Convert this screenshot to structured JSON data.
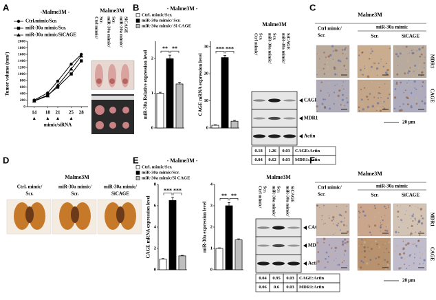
{
  "panels": [
    "A",
    "B",
    "C",
    "D",
    "E",
    "F"
  ],
  "chart_data": [
    {
      "type": "line",
      "title": "-Malme3M -",
      "ylabel": "Tumor volume (mm³)",
      "xlabel": "mimic/siRNA",
      "x": [
        14,
        18,
        21,
        25,
        28
      ],
      "xlim": [
        12,
        30
      ],
      "xticks": [
        14,
        18,
        21,
        25,
        28
      ],
      "ylim": [
        0,
        2000
      ],
      "yticks": [
        0,
        200,
        400,
        600,
        800,
        1000,
        1200,
        1400,
        1600,
        1800,
        2000
      ],
      "series": [
        {
          "name": "Ctrl.mimic/Scr.",
          "color": "#000000",
          "marker": "circle",
          "values": [
            200,
            420,
            780,
            1300,
            1600
          ]
        },
        {
          "name": "miR-30a mimic/Scr.",
          "color": "#000000",
          "marker": "square",
          "values": [
            180,
            350,
            600,
            1000,
            1400
          ]
        },
        {
          "name": "miR-30a mimic/SiCAGE",
          "color": "#000000",
          "marker": "triangle",
          "values": [
            170,
            330,
            650,
            1150,
            1550
          ]
        }
      ]
    },
    {
      "type": "bar",
      "ylabel": "miR-30a Relative expression level",
      "values": [
        1,
        2,
        1.27
      ],
      "errors": [
        0.03,
        0.1,
        0.05
      ],
      "colors": [
        "#ffffff",
        "#000000",
        "#bfbfbf"
      ],
      "ylim": [
        0,
        2.5
      ],
      "yticks": [
        0,
        1,
        2
      ],
      "annotations": [
        "**",
        "**"
      ]
    },
    {
      "type": "bar",
      "ylabel": "CAGE mRNA  expression level",
      "values": [
        1,
        26,
        2.5
      ],
      "errors": [
        0.2,
        0.8,
        0.3
      ],
      "colors": [
        "#ffffff",
        "#000000",
        "#bfbfbf"
      ],
      "ylim": [
        0,
        32
      ],
      "yticks": [
        0,
        10,
        20,
        30
      ],
      "annotations": [
        "***",
        "***"
      ]
    },
    {
      "type": "bar",
      "ylabel": "CAGE mRNA  expression level",
      "values": [
        1,
        6.5,
        1.3
      ],
      "errors": [
        0.05,
        0.3,
        0.05
      ],
      "colors": [
        "#ffffff",
        "#000000",
        "#bfbfbf"
      ],
      "ylim": [
        0,
        8
      ],
      "yticks": [
        0,
        2,
        4,
        6,
        8
      ],
      "annotations": [
        "***",
        "***"
      ]
    },
    {
      "type": "bar",
      "ylabel": "miR-30a  expression level",
      "values": [
        1,
        3,
        1.4
      ],
      "errors": [
        0.03,
        0.15,
        0.05
      ],
      "colors": [
        "#ffffff",
        "#000000",
        "#bfbfbf"
      ],
      "ylim": [
        0,
        4
      ],
      "yticks": [
        0,
        1,
        2,
        3,
        4
      ],
      "annotations": [
        "**",
        "**"
      ]
    }
  ],
  "panel_a_photo": {
    "title": "Malme3M",
    "lanes": [
      [
        "Ctrl mimic/",
        "Scr."
      ],
      [
        "miR-30a mimic/",
        "Scr."
      ],
      [
        "miR-30a mimic/",
        "SiCAGE"
      ]
    ]
  },
  "panel_b": {
    "title": "- Malme3M -",
    "legend": [
      "Ctrl. mimic/Scr.",
      "miR-30a mimic/ Scr.",
      "miR-30a mimic/ Si CAGE"
    ],
    "blot": {
      "title": "Malme3M",
      "lanes": [
        [
          "Ctrl mimic/",
          "Scr."
        ],
        [
          "miR-30a mimic/",
          "Scr."
        ],
        [
          "miR-30a mimic/",
          "SiCAGE"
        ]
      ],
      "bands": [
        "CAGE",
        "MDR1",
        "Actin"
      ],
      "table": [
        [
          "0.18",
          "1.26",
          "0.03",
          "CAGE:Actin"
        ],
        [
          "0.04",
          "0.62",
          "0.03",
          "MDR1:Actin"
        ]
      ]
    }
  },
  "panel_c": {
    "title": "Malme3M",
    "ctrl": [
      "Ctrl mimic/",
      "Scr."
    ],
    "group": "miR-30a mimic",
    "cols": [
      "Scr.",
      "SiCAGE"
    ],
    "rows": [
      "MDR1",
      "CAGE"
    ],
    "scale": "20 μm"
  },
  "panel_d": {
    "title": "Malme3M",
    "cols": [
      [
        "Ctrl. mimic/",
        "Scr."
      ],
      [
        "miR-30a mimic/",
        "Scr."
      ],
      [
        "miR-30a mimic/",
        "SiCAGE"
      ]
    ]
  },
  "panel_e": {
    "title": "- Malme3M -",
    "legend": [
      "Ctrl. mimic/Scr.",
      "miR-30a mimic/Scr.",
      "miR-30a mimic/Si CAGE"
    ],
    "blot": {
      "title": "Malme3M",
      "lanes": [
        [
          "Ctrl mimic/",
          "Scr."
        ],
        [
          "miR-30a mimic/",
          "Scr."
        ],
        [
          "miR-30a mimic/",
          "SiCAGE"
        ]
      ],
      "bands": [
        "CAGE",
        "MDR1",
        "Actin"
      ],
      "table": [
        [
          "0.04",
          "0.95",
          "0.03",
          "CAGE:Actin"
        ],
        [
          "0.06",
          "0.6",
          "0.03",
          "MDR1:Actin"
        ]
      ]
    }
  },
  "panel_f": {
    "title": "Malme3M",
    "ctrl": [
      "Ctrl mimic/",
      "Scr."
    ],
    "group": "miR-30a mimic",
    "cols": [
      "Scr.",
      "SiCAGE"
    ],
    "rows": [
      "MDR1",
      "CAGE"
    ],
    "scale": "20 μm"
  }
}
